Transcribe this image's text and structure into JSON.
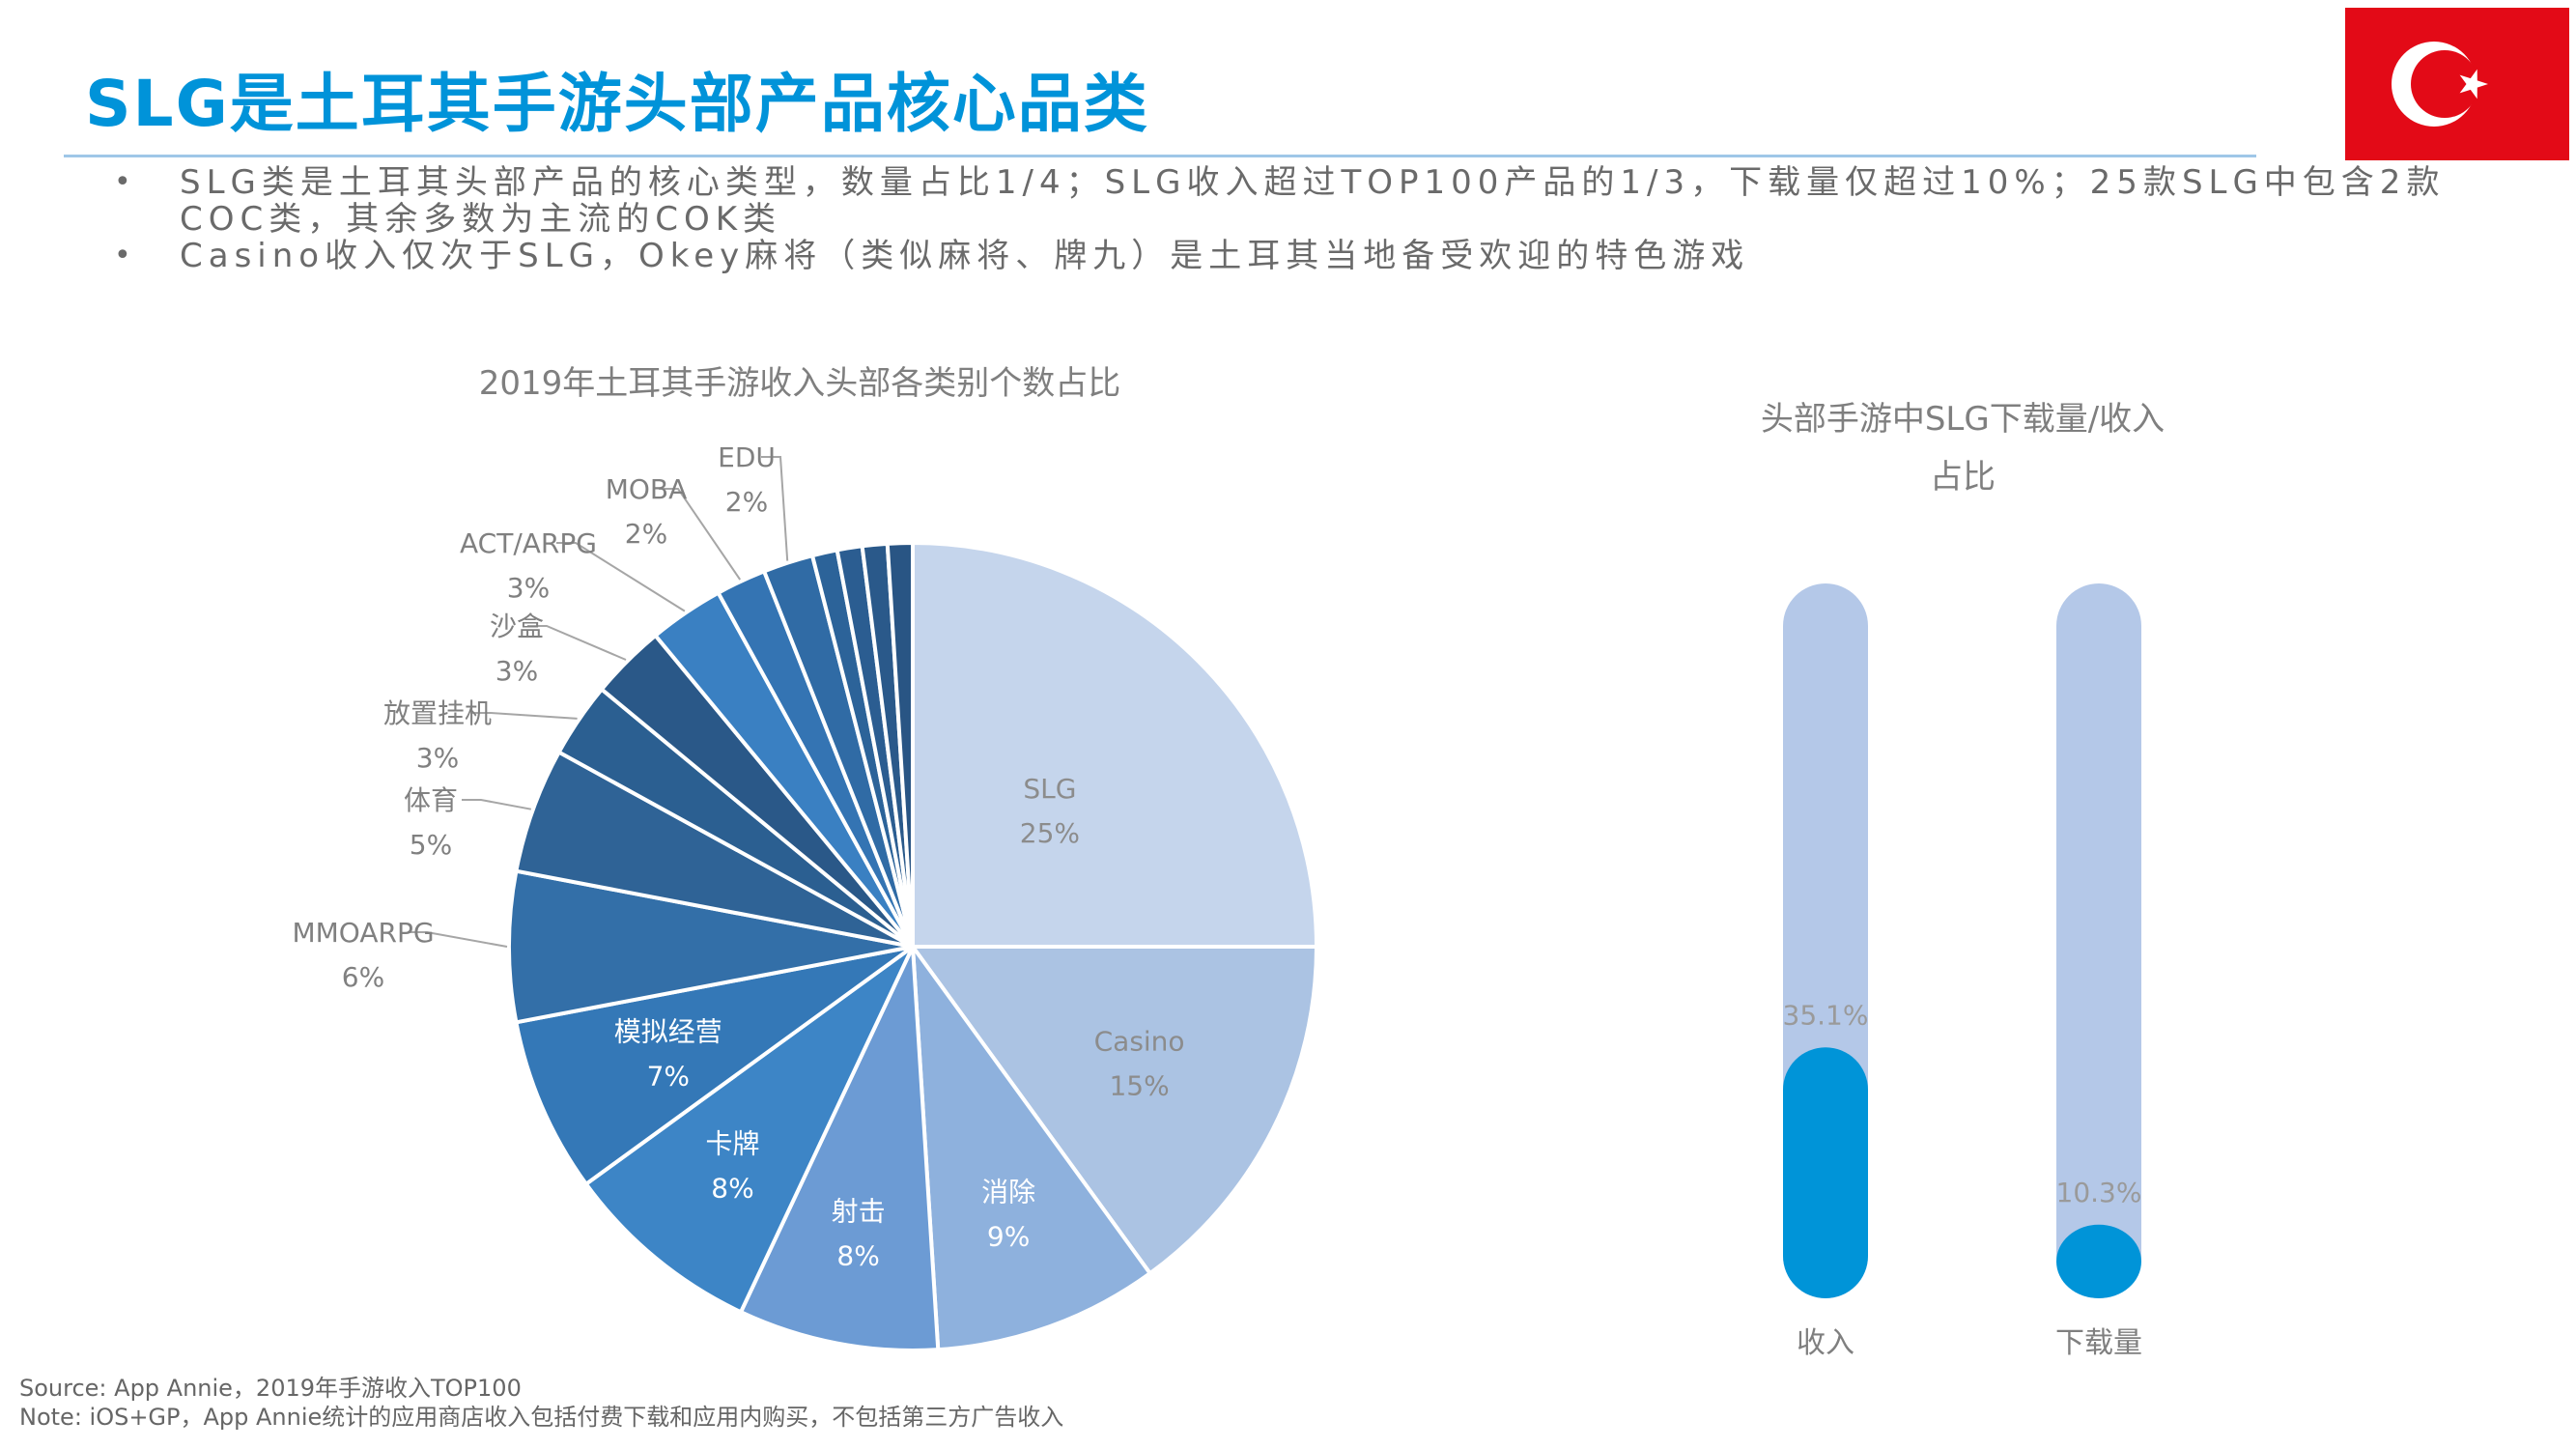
{
  "page": {
    "title": "SLG是土耳其手游头部产品核心品类",
    "bullets": [
      "SLG类是土耳其头部产品的核心类型，数量占比1/4；SLG收入超过TOP100产品的1/3，下载量仅超过10%；25款SLG中包含2款COC类，其余多数为主流的COK类",
      "Casino收入仅次于SLG，Okey麻将（类似麻将、牌九）是土耳其当地备受欢迎的特色游戏"
    ],
    "bullet_marker": "•",
    "source_lines": [
      "Source: App Annie，2019年手游收入TOP100",
      "Note: iOS+GP，App Annie统计的应用商店收入包括付费下载和应用内购买，不包括第三方广告收入"
    ],
    "flag": {
      "country": "Turkey",
      "colors": {
        "red": "#e30a17",
        "white": "#ffffff"
      }
    }
  },
  "colors": {
    "title": "#0093d9",
    "pie_edge": "#ffffff",
    "pie_text_dark": "#8c8c8c",
    "pie_text_light": "#ffffff",
    "label_gray": "#808080",
    "leader": "#a6a6a6",
    "bar_track": "#b4c8e8",
    "bar_fill": "#0094d8"
  },
  "chart_data": [
    {
      "type": "pie",
      "title": "2019年土耳其手游收入头部各类别个数占比",
      "slices": [
        {
          "label": "SLG",
          "value": 25,
          "pct_label": "25%",
          "color": "#c5d5ec",
          "text": "dark"
        },
        {
          "label": "Casino",
          "value": 15,
          "pct_label": "15%",
          "color": "#abc3e3",
          "text": "dark"
        },
        {
          "label": "消除",
          "value": 9,
          "pct_label": "9%",
          "color": "#8eb1dd",
          "text": "light"
        },
        {
          "label": "射击",
          "value": 8,
          "pct_label": "8%",
          "color": "#6c9bd4",
          "text": "light"
        },
        {
          "label": "卡牌",
          "value": 8,
          "pct_label": "8%",
          "color": "#3d85c6",
          "text": "light"
        },
        {
          "label": "模拟经营",
          "value": 7,
          "pct_label": "7%",
          "color": "#3478b7",
          "text": "light"
        },
        {
          "label": "MMOARPG",
          "value": 6,
          "pct_label": "6%",
          "color": "#336fa8",
          "text": "outside"
        },
        {
          "label": "体育",
          "value": 5,
          "pct_label": "5%",
          "color": "#2f6396",
          "text": "outside"
        },
        {
          "label": "放置挂机",
          "value": 3,
          "pct_label": "3%",
          "color": "#2b5f91",
          "text": "outside"
        },
        {
          "label": "沙盒",
          "value": 3,
          "pct_label": "3%",
          "color": "#2a5888",
          "text": "outside"
        },
        {
          "label": "ACT/ARPG",
          "value": 3,
          "pct_label": "3%",
          "color": "#3a80c2",
          "text": "outside"
        },
        {
          "label": "MOBA",
          "value": 2,
          "pct_label": "2%",
          "color": "#3474b3",
          "text": "outside"
        },
        {
          "label": "EDU",
          "value": 2,
          "pct_label": "2%",
          "color": "#306ba5",
          "text": "outside"
        },
        {
          "label": "",
          "value": 1,
          "pct_label": "",
          "color": "#2c6399",
          "text": "none"
        },
        {
          "label": "",
          "value": 1,
          "pct_label": "",
          "color": "#2b5d91",
          "text": "none"
        },
        {
          "label": "",
          "value": 1,
          "pct_label": "",
          "color": "#2a598a",
          "text": "none"
        },
        {
          "label": "",
          "value": 1,
          "pct_label": "",
          "color": "#295584",
          "text": "none"
        }
      ]
    },
    {
      "type": "bar",
      "title": "头部手游中SLG下载量/收入占比",
      "title_lines": [
        "头部手游中SLG下载量/收入",
        "占比"
      ],
      "categories": [
        "收入",
        "下载量"
      ],
      "values": [
        35.1,
        10.3
      ],
      "value_labels": [
        "35.1%",
        "10.3%"
      ],
      "ylim": [
        0,
        100
      ]
    }
  ]
}
